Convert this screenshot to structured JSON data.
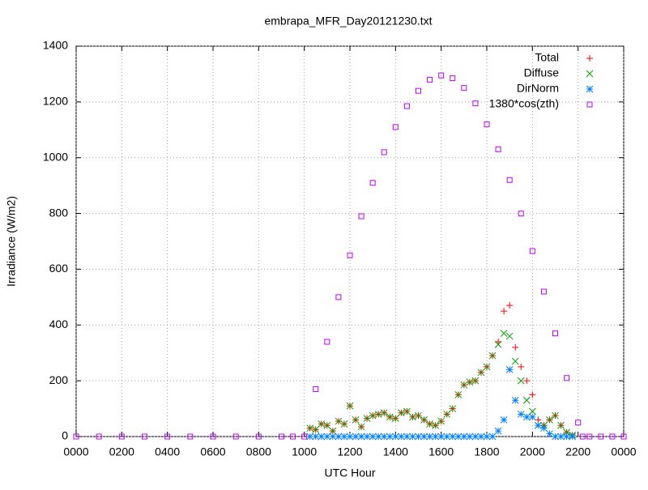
{
  "chart_data": {
    "type": "scatter",
    "title": "embrapa_MFR_Day20121230.txt",
    "xlabel": "UTC Hour",
    "ylabel": "Irradiance (W/m2)",
    "xlim": [
      0,
      24
    ],
    "ylim": [
      0,
      1400
    ],
    "xticks": [
      {
        "value": 0,
        "label": "0000"
      },
      {
        "value": 2,
        "label": "0200"
      },
      {
        "value": 4,
        "label": "0400"
      },
      {
        "value": 6,
        "label": "0600"
      },
      {
        "value": 8,
        "label": "0800"
      },
      {
        "value": 10,
        "label": "1000"
      },
      {
        "value": 12,
        "label": "1200"
      },
      {
        "value": 14,
        "label": "1400"
      },
      {
        "value": 16,
        "label": "1600"
      },
      {
        "value": 18,
        "label": "1800"
      },
      {
        "value": 20,
        "label": "2000"
      },
      {
        "value": 22,
        "label": "2200"
      },
      {
        "value": 24,
        "label": "0000"
      }
    ],
    "yticks": [
      0,
      200,
      400,
      600,
      800,
      1000,
      1200,
      1400
    ],
    "grid": true,
    "legend": "top-right",
    "series": [
      {
        "name": "Total",
        "color": "#ff0000",
        "marker": "plus",
        "x": [
          10.25,
          10.5,
          10.75,
          11,
          11.25,
          11.5,
          11.75,
          12,
          12.25,
          12.5,
          12.75,
          13,
          13.25,
          13.5,
          13.75,
          14,
          14.25,
          14.5,
          14.75,
          15,
          15.25,
          15.5,
          15.75,
          16,
          16.25,
          16.5,
          16.75,
          17,
          17.25,
          17.5,
          17.75,
          18,
          18.25,
          18.5,
          18.75,
          19,
          19.25,
          19.5,
          19.75,
          20,
          20.25,
          20.5,
          20.75,
          21,
          21.25,
          21.5,
          21.75
        ],
        "values": [
          30,
          25,
          45,
          40,
          20,
          55,
          45,
          110,
          60,
          35,
          65,
          75,
          80,
          85,
          70,
          65,
          85,
          90,
          70,
          75,
          60,
          45,
          40,
          55,
          80,
          100,
          150,
          185,
          195,
          200,
          230,
          250,
          290,
          340,
          450,
          470,
          320,
          250,
          200,
          150,
          60,
          40,
          60,
          75,
          40,
          15,
          5
        ]
      },
      {
        "name": "Diffuse",
        "color": "#00a000",
        "marker": "cross",
        "x": [
          10.25,
          10.5,
          10.75,
          11,
          11.25,
          11.5,
          11.75,
          12,
          12.25,
          12.5,
          12.75,
          13,
          13.25,
          13.5,
          13.75,
          14,
          14.25,
          14.5,
          14.75,
          15,
          15.25,
          15.5,
          15.75,
          16,
          16.25,
          16.5,
          16.75,
          17,
          17.25,
          17.5,
          17.75,
          18,
          18.25,
          18.5,
          18.75,
          19,
          19.25,
          19.5,
          19.75,
          20,
          20.25,
          20.5,
          20.75,
          21,
          21.25,
          21.5,
          21.75
        ],
        "values": [
          30,
          25,
          45,
          40,
          20,
          55,
          45,
          110,
          60,
          35,
          65,
          75,
          80,
          85,
          70,
          65,
          85,
          90,
          70,
          75,
          60,
          45,
          40,
          55,
          80,
          100,
          150,
          185,
          195,
          200,
          230,
          250,
          290,
          330,
          370,
          360,
          270,
          200,
          130,
          90,
          40,
          40,
          60,
          75,
          40,
          15,
          5
        ]
      },
      {
        "name": "DirNorm",
        "color": "#0080ff",
        "marker": "star",
        "x": [
          10.25,
          10.5,
          10.75,
          11,
          11.25,
          11.5,
          11.75,
          12,
          12.25,
          12.5,
          12.75,
          13,
          13.25,
          13.5,
          13.75,
          14,
          14.25,
          14.5,
          14.75,
          15,
          15.25,
          15.5,
          15.75,
          16,
          16.25,
          16.5,
          16.75,
          17,
          17.25,
          17.5,
          17.75,
          18,
          18.25,
          18.5,
          18.75,
          19,
          19.25,
          19.5,
          19.75,
          20,
          20.25,
          20.5,
          20.75,
          21,
          21.25,
          21.5,
          21.75
        ],
        "values": [
          0,
          0,
          0,
          0,
          0,
          0,
          0,
          0,
          0,
          0,
          0,
          0,
          0,
          0,
          0,
          0,
          0,
          0,
          0,
          0,
          0,
          0,
          0,
          0,
          0,
          0,
          0,
          0,
          0,
          0,
          0,
          0,
          0,
          20,
          60,
          240,
          130,
          80,
          70,
          70,
          40,
          30,
          10,
          0,
          0,
          0,
          0
        ]
      },
      {
        "name": "1380*cos(zth)",
        "color": "#c000ff",
        "marker": "square",
        "x": [
          0,
          1,
          2,
          3,
          4,
          5,
          6,
          7,
          8,
          9,
          9.5,
          10,
          10.5,
          11,
          11.5,
          12,
          12.5,
          13,
          13.5,
          14,
          14.5,
          15,
          15.5,
          16,
          16.5,
          17,
          17.5,
          18,
          18.5,
          19,
          19.5,
          20,
          20.5,
          21,
          21.5,
          22,
          22.2,
          22.5,
          23,
          23.5,
          24
        ],
        "values": [
          0,
          0,
          0,
          0,
          0,
          0,
          0,
          0,
          0,
          0,
          0,
          0,
          170,
          340,
          500,
          650,
          790,
          910,
          1020,
          1110,
          1185,
          1240,
          1280,
          1295,
          1285,
          1250,
          1195,
          1120,
          1030,
          920,
          800,
          665,
          520,
          370,
          210,
          50,
          0,
          0,
          0,
          0,
          0
        ]
      }
    ]
  }
}
